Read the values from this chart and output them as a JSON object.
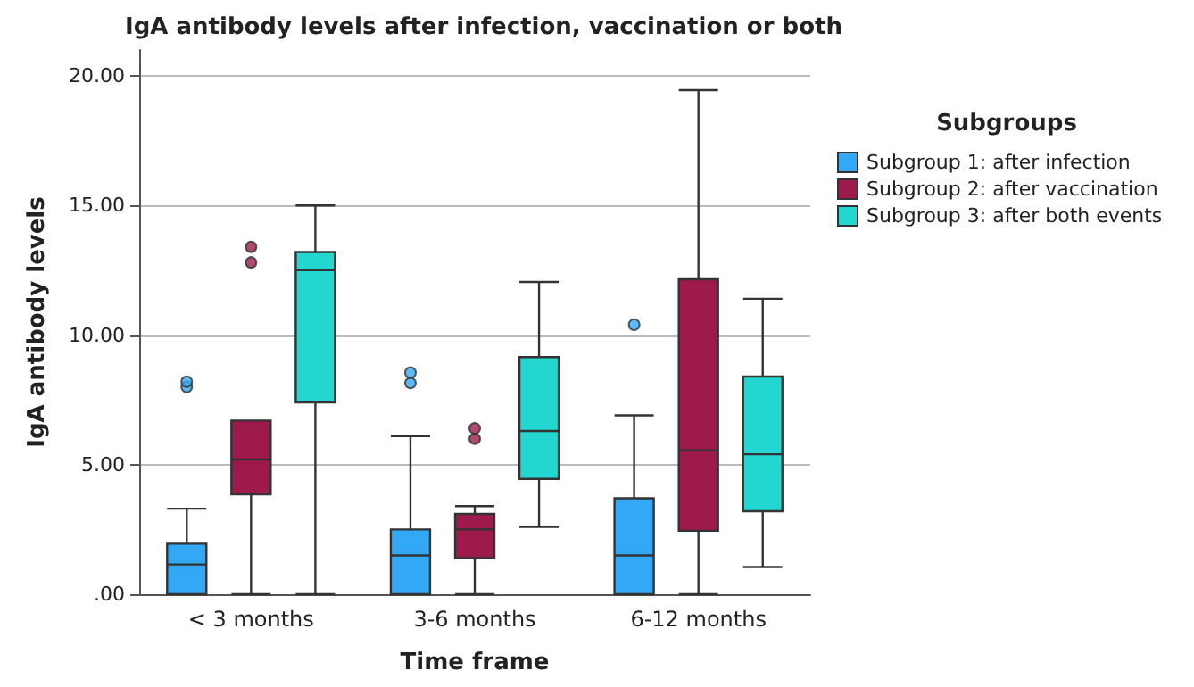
{
  "chart_data": {
    "type": "box",
    "title": "IgA antibody levels after infection, vaccination or both",
    "xlabel": "Time frame",
    "ylabel": "IgA antibody levels",
    "legend_title": "Subgroups",
    "legend": "right",
    "grid": "y",
    "categories": [
      "< 3 months",
      "3-6 months",
      "6-12 months"
    ],
    "ylim": [
      0,
      21
    ],
    "yticks": [
      {
        "value": 0,
        "label": ".00"
      },
      {
        "value": 5,
        "label": "5.00"
      },
      {
        "value": 10,
        "label": "10.00"
      },
      {
        "value": 15,
        "label": "15.00"
      },
      {
        "value": 20,
        "label": "20.00"
      }
    ],
    "series": [
      {
        "name": "Subgroup 1: after infection",
        "color": "#33a9f5",
        "boxes": [
          {
            "low": 0,
            "q1": 0,
            "median": 1.15,
            "q3": 1.95,
            "high": 3.3,
            "outliers": [
              8.0,
              8.2
            ]
          },
          {
            "low": 0,
            "q1": 0,
            "median": 1.5,
            "q3": 2.5,
            "high": 6.1,
            "outliers": [
              8.15,
              8.55
            ]
          },
          {
            "low": 0,
            "q1": 0,
            "median": 1.5,
            "q3": 3.7,
            "high": 6.9,
            "outliers": [
              10.4
            ]
          }
        ]
      },
      {
        "name": "Subgroup 2: after vaccination",
        "color": "#9e1a4d",
        "boxes": [
          {
            "low": 0,
            "q1": 3.85,
            "median": 5.2,
            "q3": 6.7,
            "high": 6.7,
            "outliers": [
              12.8,
              13.4
            ]
          },
          {
            "low": 0,
            "q1": 1.4,
            "median": 2.5,
            "q3": 3.1,
            "high": 3.4,
            "outliers": [
              6.0,
              6.4
            ]
          },
          {
            "low": 0,
            "q1": 2.45,
            "median": 5.55,
            "q3": 12.15,
            "high": 19.45
          }
        ]
      },
      {
        "name": "Subgroup 3: after both events",
        "color": "#23d6cf",
        "boxes": [
          {
            "low": 0,
            "q1": 7.4,
            "median": 12.5,
            "q3": 13.2,
            "high": 15.0
          },
          {
            "low": 2.6,
            "q1": 4.45,
            "median": 6.3,
            "q3": 9.15,
            "high": 12.05
          },
          {
            "low": 1.05,
            "q1": 3.2,
            "median": 5.4,
            "q3": 8.4,
            "high": 11.4
          }
        ]
      }
    ]
  }
}
